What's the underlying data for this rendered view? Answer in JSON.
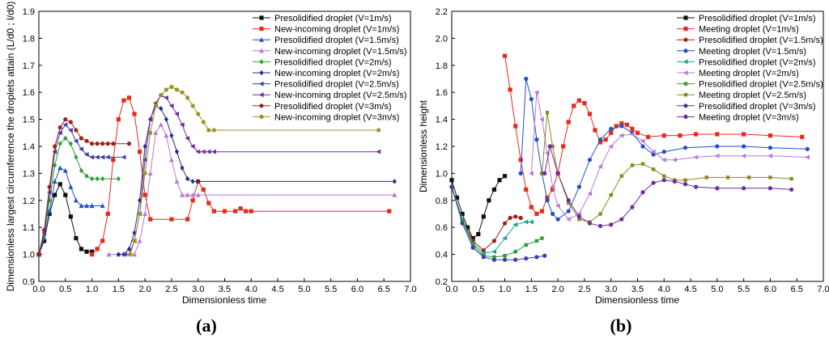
{
  "figure": {
    "panel_labels": [
      "(a)",
      "(b)"
    ],
    "panel_letters": [
      "a",
      "b"
    ]
  },
  "colors": {
    "black": "#111111",
    "red": "#e8291c",
    "blue": "#1f4fc9",
    "violet": "#b87ad6",
    "green": "#2e9e36",
    "navy": "#232a8f",
    "indigo": "#3a3fa8",
    "purple": "#6f2c9e",
    "darkred": "#9e2316",
    "olive": "#9c9422",
    "teal": "#1aa38c",
    "olive2": "#8a8a1e"
  },
  "chart_data": [
    {
      "type": "line",
      "panel": "a",
      "xlabel": "Dimensionless time",
      "ylabel": "Dimensionless largest circumference the droplets attain (L/d0 ; l/d0)",
      "xlim": [
        0.0,
        7.0
      ],
      "ylim": [
        0.9,
        1.9
      ],
      "xticks": [
        "0.0",
        "0.5",
        "1.0",
        "1.5",
        "2.0",
        "2.5",
        "3.0",
        "3.5",
        "4.0",
        "4.5",
        "5.0",
        "5.5",
        "6.0",
        "6.5",
        "7.0"
      ],
      "yticks": [
        "0.9",
        "1.0",
        "1.1",
        "1.2",
        "1.3",
        "1.4",
        "1.5",
        "1.6",
        "1.7",
        "1.8",
        "1.9"
      ],
      "legend_position": "top-right",
      "series": [
        {
          "name": "Presolidified droplet  (V=1m/s)",
          "color": "black",
          "marker": "square",
          "x": [
            0.0,
            0.1,
            0.2,
            0.3,
            0.4,
            0.5,
            0.6,
            0.7,
            0.8,
            0.9,
            1.0
          ],
          "y": [
            1.0,
            1.05,
            1.15,
            1.22,
            1.26,
            1.22,
            1.14,
            1.06,
            1.02,
            1.01,
            1.01
          ]
        },
        {
          "name": "New-incoming droplet  (V=1m/s)",
          "color": "red",
          "marker": "square",
          "x": [
            1.0,
            1.1,
            1.2,
            1.3,
            1.4,
            1.5,
            1.6,
            1.7,
            1.8,
            1.9,
            2.0,
            2.1,
            2.5,
            2.8,
            2.9,
            3.0,
            3.1,
            3.2,
            3.3,
            3.5,
            3.7,
            3.8,
            3.9,
            4.0,
            6.6
          ],
          "y": [
            1.0,
            1.02,
            1.05,
            1.15,
            1.35,
            1.5,
            1.57,
            1.58,
            1.52,
            1.38,
            1.22,
            1.13,
            1.13,
            1.13,
            1.2,
            1.27,
            1.24,
            1.19,
            1.16,
            1.16,
            1.16,
            1.17,
            1.16,
            1.16,
            1.16
          ]
        },
        {
          "name": "Presolidified droplet    (V=1.5m/s)",
          "color": "blue",
          "marker": "triangle",
          "x": [
            0.0,
            0.1,
            0.2,
            0.3,
            0.4,
            0.5,
            0.6,
            0.7,
            0.8,
            0.9,
            1.0,
            1.2
          ],
          "y": [
            1.0,
            1.06,
            1.16,
            1.27,
            1.32,
            1.31,
            1.25,
            1.2,
            1.18,
            1.18,
            1.18,
            1.18
          ]
        },
        {
          "name": "New-incoming droplet  (V=1.5m/s)",
          "color": "violet",
          "marker": "triangle",
          "x": [
            1.32,
            1.5,
            1.8,
            1.9,
            2.0,
            2.1,
            2.2,
            2.3,
            2.4,
            2.5,
            2.6,
            2.7,
            2.8,
            2.9,
            3.0,
            6.7
          ],
          "y": [
            1.0,
            1.0,
            1.0,
            1.05,
            1.15,
            1.3,
            1.45,
            1.48,
            1.44,
            1.35,
            1.27,
            1.22,
            1.22,
            1.22,
            1.22,
            1.22
          ]
        },
        {
          "name": "Presolidified droplet  (V=2m/s)",
          "color": "green",
          "marker": "diamond",
          "x": [
            0.0,
            0.1,
            0.2,
            0.3,
            0.4,
            0.5,
            0.6,
            0.7,
            0.8,
            0.9,
            1.0,
            1.1,
            1.2,
            1.5
          ],
          "y": [
            1.0,
            1.07,
            1.2,
            1.33,
            1.41,
            1.43,
            1.41,
            1.36,
            1.31,
            1.29,
            1.28,
            1.28,
            1.28,
            1.28
          ]
        },
        {
          "name": "New-incoming droplet  (V=2m/s)",
          "color": "navy",
          "marker": "diamond",
          "x": [
            1.5,
            1.6,
            1.7,
            1.8,
            1.9,
            2.0,
            2.1,
            2.2,
            2.3,
            2.4,
            2.5,
            2.6,
            2.7,
            2.8,
            2.9,
            3.0,
            6.7
          ],
          "y": [
            1.0,
            1.0,
            1.02,
            1.08,
            1.2,
            1.4,
            1.5,
            1.55,
            1.54,
            1.5,
            1.44,
            1.38,
            1.32,
            1.28,
            1.27,
            1.27,
            1.27
          ]
        },
        {
          "name": "Presolidified droplet  (V=2.5m/s)",
          "color": "indigo",
          "marker": "triangle-left",
          "x": [
            0.0,
            0.1,
            0.2,
            0.3,
            0.4,
            0.5,
            0.6,
            0.7,
            0.8,
            0.9,
            1.0,
            1.1,
            1.2,
            1.3,
            1.6
          ],
          "y": [
            1.0,
            1.08,
            1.23,
            1.38,
            1.45,
            1.48,
            1.46,
            1.42,
            1.39,
            1.37,
            1.36,
            1.36,
            1.36,
            1.36,
            1.36
          ]
        },
        {
          "name": "New-incoming droplet  (V=2.5m/s)",
          "color": "purple",
          "marker": "triangle-left",
          "x": [
            1.62,
            1.7,
            1.8,
            1.9,
            2.0,
            2.1,
            2.2,
            2.3,
            2.4,
            2.5,
            2.6,
            2.7,
            2.8,
            2.9,
            3.0,
            3.1,
            3.2,
            3.3,
            6.4
          ],
          "y": [
            1.0,
            1.0,
            1.05,
            1.15,
            1.35,
            1.5,
            1.56,
            1.59,
            1.58,
            1.55,
            1.52,
            1.48,
            1.43,
            1.4,
            1.38,
            1.38,
            1.38,
            1.38,
            1.38
          ]
        },
        {
          "name": "Presolidified droplet  (V=3m/s)",
          "color": "darkred",
          "marker": "circle",
          "x": [
            0.0,
            0.1,
            0.2,
            0.3,
            0.4,
            0.5,
            0.6,
            0.7,
            0.8,
            0.9,
            1.0,
            1.1,
            1.2,
            1.3,
            1.4,
            1.7
          ],
          "y": [
            1.0,
            1.09,
            1.25,
            1.4,
            1.47,
            1.5,
            1.49,
            1.46,
            1.43,
            1.42,
            1.41,
            1.41,
            1.41,
            1.41,
            1.41,
            1.41
          ]
        },
        {
          "name": "New-incoming droplet  (V=3m/s)",
          "color": "olive",
          "marker": "circle",
          "x": [
            1.72,
            1.8,
            1.9,
            2.0,
            2.1,
            2.2,
            2.3,
            2.4,
            2.5,
            2.6,
            2.7,
            2.8,
            2.9,
            3.0,
            3.1,
            3.2,
            3.3,
            6.4
          ],
          "y": [
            1.0,
            1.05,
            1.15,
            1.3,
            1.45,
            1.55,
            1.59,
            1.61,
            1.62,
            1.61,
            1.6,
            1.58,
            1.55,
            1.52,
            1.49,
            1.46,
            1.46,
            1.46
          ]
        }
      ]
    },
    {
      "type": "line",
      "panel": "b",
      "xlabel": "Dimensionless time",
      "ylabel": "Dimensionless height",
      "xlim": [
        0.0,
        7.0
      ],
      "ylim": [
        0.2,
        2.2
      ],
      "xticks": [
        "0.0",
        "0.5",
        "1.0",
        "1.5",
        "2.0",
        "2.5",
        "3.0",
        "3.5",
        "4.0",
        "4.5",
        "5.0",
        "5.5",
        "6.0",
        "6.5",
        "7.0"
      ],
      "yticks": [
        "0.2",
        "0.4",
        "0.6",
        "0.8",
        "1.0",
        "1.2",
        "1.4",
        "1.6",
        "1.8",
        "2.0",
        "2.2"
      ],
      "legend_position": "top-right",
      "series": [
        {
          "name": "Presolidified droplet  (V=1m/s)",
          "color": "black",
          "marker": "square",
          "x": [
            0.0,
            0.1,
            0.2,
            0.3,
            0.4,
            0.5,
            0.6,
            0.7,
            0.8,
            0.9,
            1.0
          ],
          "y": [
            0.95,
            0.82,
            0.7,
            0.6,
            0.52,
            0.55,
            0.68,
            0.8,
            0.88,
            0.95,
            0.98
          ]
        },
        {
          "name": "Meeting droplet  (V=1m/s)",
          "color": "red",
          "marker": "square",
          "x": [
            1.0,
            1.1,
            1.2,
            1.3,
            1.4,
            1.5,
            1.6,
            1.7,
            1.8,
            1.9,
            2.0,
            2.1,
            2.2,
            2.3,
            2.4,
            2.5,
            2.6,
            2.7,
            2.8,
            2.9,
            3.0,
            3.1,
            3.2,
            3.3,
            3.4,
            3.5,
            3.7,
            4.0,
            4.3,
            4.6,
            5.0,
            5.5,
            6.0,
            6.6
          ],
          "y": [
            1.87,
            1.62,
            1.35,
            1.1,
            0.88,
            0.75,
            0.7,
            0.72,
            0.82,
            0.88,
            1.0,
            1.2,
            1.38,
            1.5,
            1.54,
            1.52,
            1.44,
            1.32,
            1.23,
            1.25,
            1.3,
            1.35,
            1.37,
            1.36,
            1.33,
            1.3,
            1.27,
            1.28,
            1.28,
            1.29,
            1.29,
            1.29,
            1.28,
            1.27
          ]
        },
        {
          "name": "Presolidified droplet  (V=1.5m/s)",
          "color": "darkred",
          "marker": "circle",
          "x": [
            0.0,
            0.2,
            0.4,
            0.6,
            0.8,
            1.0,
            1.1,
            1.2,
            1.3
          ],
          "y": [
            0.9,
            0.66,
            0.5,
            0.43,
            0.5,
            0.63,
            0.67,
            0.68,
            0.67
          ]
        },
        {
          "name": "Meeting droplet  (V=1.5m/s)",
          "color": "blue",
          "marker": "circle",
          "x": [
            1.3,
            1.4,
            1.5,
            1.6,
            1.7,
            1.8,
            1.9,
            2.0,
            2.2,
            2.4,
            2.6,
            2.8,
            3.0,
            3.2,
            3.4,
            3.6,
            3.8,
            4.0,
            4.4,
            5.0,
            5.5,
            6.0,
            6.7
          ],
          "y": [
            1.0,
            1.7,
            1.55,
            1.25,
            1.0,
            0.8,
            0.7,
            0.66,
            0.72,
            0.9,
            1.1,
            1.25,
            1.33,
            1.35,
            1.3,
            1.2,
            1.14,
            1.16,
            1.19,
            1.2,
            1.2,
            1.19,
            1.18
          ]
        },
        {
          "name": "Presolidified droplet  (V=2m/s)",
          "color": "teal",
          "marker": "triangle-left",
          "x": [
            0.0,
            0.2,
            0.4,
            0.6,
            0.8,
            1.0,
            1.2,
            1.4,
            1.5
          ],
          "y": [
            0.9,
            0.66,
            0.48,
            0.41,
            0.42,
            0.52,
            0.62,
            0.64,
            0.64
          ]
        },
        {
          "name": "Meeting droplet  (V=2m/s)",
          "color": "violet",
          "marker": "triangle-left",
          "x": [
            1.5,
            1.6,
            1.7,
            1.8,
            1.9,
            2.0,
            2.2,
            2.4,
            2.6,
            2.8,
            3.0,
            3.2,
            3.4,
            3.6,
            3.8,
            4.0,
            4.2,
            4.6,
            5.0,
            5.5,
            6.0,
            6.7
          ],
          "y": [
            1.0,
            1.6,
            1.4,
            1.15,
            0.9,
            0.76,
            0.66,
            0.7,
            0.85,
            1.05,
            1.2,
            1.28,
            1.29,
            1.24,
            1.16,
            1.1,
            1.1,
            1.12,
            1.13,
            1.13,
            1.13,
            1.12
          ]
        },
        {
          "name": "Presolidified droplet  (V=2.5m/s)",
          "color": "green",
          "marker": "square-small",
          "x": [
            0.0,
            0.2,
            0.4,
            0.6,
            0.8,
            1.0,
            1.2,
            1.4,
            1.6,
            1.7
          ],
          "y": [
            0.9,
            0.65,
            0.47,
            0.39,
            0.38,
            0.39,
            0.42,
            0.47,
            0.5,
            0.52
          ]
        },
        {
          "name": "Meeting droplet  (V=2.5m/s)",
          "color": "olive2",
          "marker": "square-small",
          "x": [
            1.7,
            1.8,
            1.9,
            2.0,
            2.2,
            2.4,
            2.6,
            2.8,
            3.0,
            3.2,
            3.4,
            3.6,
            3.8,
            4.0,
            4.2,
            4.4,
            4.8,
            5.2,
            5.6,
            6.0,
            6.4
          ],
          "y": [
            1.0,
            1.45,
            1.2,
            1.0,
            0.78,
            0.66,
            0.64,
            0.7,
            0.84,
            0.98,
            1.06,
            1.07,
            1.03,
            0.98,
            0.95,
            0.95,
            0.97,
            0.97,
            0.97,
            0.97,
            0.96
          ]
        },
        {
          "name": "Presolidified droplet  (V=3m/s)",
          "color": "indigo",
          "marker": "circle",
          "x": [
            0.0,
            0.2,
            0.4,
            0.6,
            0.8,
            1.0,
            1.2,
            1.4,
            1.6,
            1.75
          ],
          "y": [
            0.9,
            0.63,
            0.45,
            0.38,
            0.36,
            0.36,
            0.36,
            0.37,
            0.38,
            0.39
          ]
        },
        {
          "name": "Meeting droplet  (V=3m/s)",
          "color": "purple",
          "marker": "circle",
          "x": [
            1.75,
            1.85,
            2.0,
            2.2,
            2.4,
            2.6,
            2.8,
            3.0,
            3.2,
            3.4,
            3.6,
            3.8,
            4.0,
            4.2,
            4.4,
            4.6,
            5.0,
            5.5,
            6.0,
            6.4
          ],
          "y": [
            1.0,
            1.2,
            1.0,
            0.8,
            0.68,
            0.63,
            0.61,
            0.62,
            0.66,
            0.75,
            0.86,
            0.93,
            0.95,
            0.94,
            0.92,
            0.9,
            0.89,
            0.89,
            0.89,
            0.88
          ]
        }
      ]
    }
  ]
}
